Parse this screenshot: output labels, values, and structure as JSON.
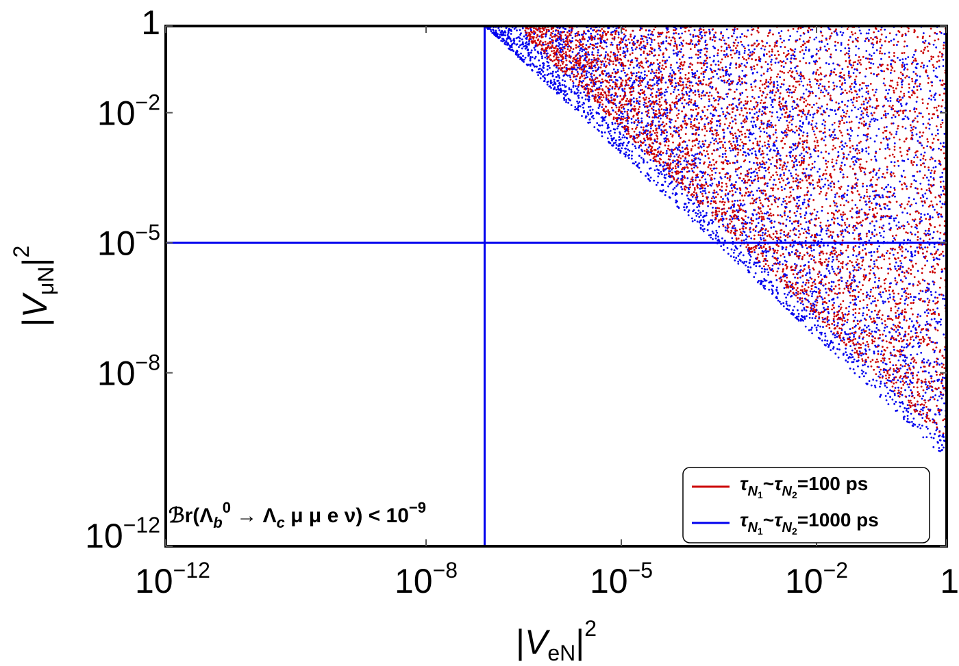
{
  "chart_data": {
    "type": "scatter",
    "title": "",
    "xlabel": "|V_eN|^2",
    "ylabel": "|V_μN|^2",
    "xscale": "log",
    "yscale": "log",
    "xlim_exp": [
      -12,
      0
    ],
    "ylim_exp": [
      -12,
      0
    ],
    "x_ticks": [
      {
        "exp": -12,
        "base": "10",
        "sup": "−12"
      },
      {
        "exp": -8,
        "base": "10",
        "sup": "−8"
      },
      {
        "exp": -5,
        "base": "10",
        "sup": "−5"
      },
      {
        "exp": -2,
        "base": "10",
        "sup": "−2"
      },
      {
        "exp": 0,
        "base": "1",
        "sup": ""
      }
    ],
    "y_ticks": [
      {
        "exp": 0,
        "base": "1",
        "sup": ""
      },
      {
        "exp": -2,
        "base": "10",
        "sup": "−2"
      },
      {
        "exp": -5,
        "base": "10",
        "sup": "−5"
      },
      {
        "exp": -8,
        "base": "10",
        "sup": "−8"
      },
      {
        "exp": -12,
        "base": "10",
        "sup": "−12"
      }
    ],
    "series": [
      {
        "name": "τN1~τN2=100 ps",
        "color": "#cc0000",
        "lower_boundary_exps": [
          [
            -6.5,
            -0.2
          ],
          [
            0,
            -9.6
          ]
        ],
        "label": {
          "tau1": "τ",
          "n1": "N",
          "i1": "1",
          "tilde": "~",
          "tau2": "τ",
          "n2": "N",
          "i2": "2",
          "value": "=100 ps"
        }
      },
      {
        "name": "τN1~τN2=1000 ps",
        "color": "#0000ee",
        "lower_boundary_exps": [
          [
            -7.1,
            0
          ],
          [
            0,
            -10
          ]
        ],
        "label": {
          "tau1": "τ",
          "n1": "N",
          "i1": "1",
          "tilde": "~",
          "tau2": "τ",
          "n2": "N",
          "i2": "2",
          "value": "=1000 ps"
        }
      }
    ],
    "reference_lines": {
      "vertical_x_exp": -7.1,
      "horizontal_y_exp": -5,
      "color": "#0000ee"
    },
    "legend_position": "bottom-right",
    "annotation": {
      "br": "ℬr(Λ",
      "sub_b": "b",
      "sup_0": "0",
      "arrow": " → Λ",
      "sub_c": "c",
      "rest": " μ μ e ν) < 10",
      "sup_exp": "−9"
    }
  }
}
